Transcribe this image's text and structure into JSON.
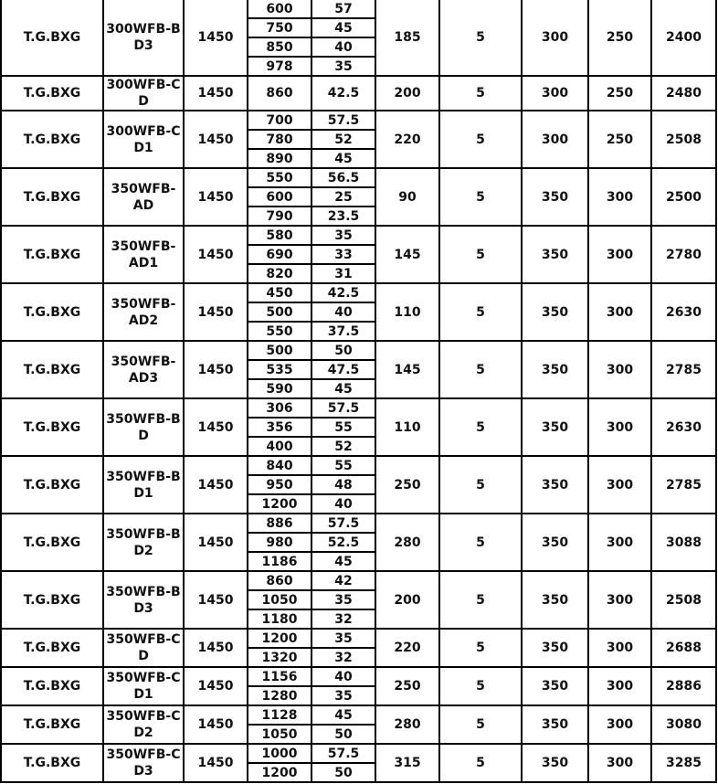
{
  "table": {
    "rows": [
      {
        "series": "T.G.BXG",
        "model_lines": [
          "300WFB-B",
          "D3"
        ],
        "speed": "1450",
        "flow": [
          "600",
          "750",
          "850",
          "978"
        ],
        "head": [
          "57",
          "45",
          "40",
          "35"
        ],
        "c6": "185",
        "c7": "5",
        "c8": "300",
        "c9": "250",
        "c10": "2400"
      },
      {
        "series": "T.G.BXG",
        "model_lines": [
          "300WFB-C",
          "D"
        ],
        "speed": "1450",
        "flow": [
          "860"
        ],
        "head": [
          "42.5"
        ],
        "c6": "200",
        "c7": "5",
        "c8": "300",
        "c9": "250",
        "c10": "2480",
        "span": 2
      },
      {
        "series": "T.G.BXG",
        "model_lines": [
          "300WFB-C",
          "D1"
        ],
        "speed": "1450",
        "flow": [
          "700",
          "780",
          "890"
        ],
        "head": [
          "57.5",
          "52",
          "45"
        ],
        "c6": "220",
        "c7": "5",
        "c8": "300",
        "c9": "250",
        "c10": "2508"
      },
      {
        "series": "T.G.BXG",
        "model_lines": [
          "350WFB-",
          "AD"
        ],
        "speed": "1450",
        "flow": [
          "550",
          "600",
          "790"
        ],
        "head": [
          "56.5",
          "25",
          "23.5"
        ],
        "c6": "90",
        "c7": "5",
        "c8": "350",
        "c9": "300",
        "c10": "2500"
      },
      {
        "series": "T.G.BXG",
        "model_lines": [
          "350WFB-",
          "AD1"
        ],
        "speed": "1450",
        "flow": [
          "580",
          "690",
          "820"
        ],
        "head": [
          "35",
          "33",
          "31"
        ],
        "c6": "145",
        "c7": "5",
        "c8": "350",
        "c9": "300",
        "c10": "2780"
      },
      {
        "series": "T.G.BXG",
        "model_lines": [
          "350WFB-",
          "AD2"
        ],
        "speed": "1450",
        "flow": [
          "450",
          "500",
          "550"
        ],
        "head": [
          "42.5",
          "40",
          "37.5"
        ],
        "c6": "110",
        "c7": "5",
        "c8": "350",
        "c9": "300",
        "c10": "2630"
      },
      {
        "series": "T.G.BXG",
        "model_lines": [
          "350WFB-",
          "AD3"
        ],
        "speed": "1450",
        "flow": [
          "500",
          "535",
          "590"
        ],
        "head": [
          "50",
          "47.5",
          "45"
        ],
        "c6": "145",
        "c7": "5",
        "c8": "350",
        "c9": "300",
        "c10": "2785"
      },
      {
        "series": "T.G.BXG",
        "model_lines": [
          "350WFB-B",
          "D"
        ],
        "speed": "1450",
        "flow": [
          "306",
          "356",
          "400"
        ],
        "head": [
          "57.5",
          "55",
          "52"
        ],
        "c6": "110",
        "c7": "5",
        "c8": "350",
        "c9": "300",
        "c10": "2630"
      },
      {
        "series": "T.G.BXG",
        "model_lines": [
          "350WFB-B",
          "D1"
        ],
        "speed": "1450",
        "flow": [
          "840",
          "950",
          "1200"
        ],
        "head": [
          "55",
          "48",
          "40"
        ],
        "c6": "250",
        "c7": "5",
        "c8": "350",
        "c9": "300",
        "c10": "2785"
      },
      {
        "series": "T.G.BXG",
        "model_lines": [
          "350WFB-B",
          "D2"
        ],
        "speed": "1450",
        "flow": [
          "886",
          "980",
          "1186"
        ],
        "head": [
          "57.5",
          "52.5",
          "45"
        ],
        "c6": "280",
        "c7": "5",
        "c8": "350",
        "c9": "300",
        "c10": "3088"
      },
      {
        "series": "T.G.BXG",
        "model_lines": [
          "350WFB-B",
          "D3"
        ],
        "speed": "1450",
        "flow": [
          "860",
          "1050",
          "1180"
        ],
        "head": [
          "42",
          "35",
          "32"
        ],
        "c6": "200",
        "c7": "5",
        "c8": "350",
        "c9": "300",
        "c10": "2508"
      },
      {
        "series": "T.G.BXG",
        "model_lines": [
          "350WFB-C",
          "D"
        ],
        "speed": "1450",
        "flow": [
          "1200",
          "1320"
        ],
        "head": [
          "35",
          "32"
        ],
        "c6": "220",
        "c7": "5",
        "c8": "350",
        "c9": "300",
        "c10": "2688"
      },
      {
        "series": "T.G.BXG",
        "model_lines": [
          "350WFB-C",
          "D1"
        ],
        "speed": "1450",
        "flow": [
          "1156",
          "1280"
        ],
        "head": [
          "40",
          "35"
        ],
        "c6": "250",
        "c7": "5",
        "c8": "350",
        "c9": "300",
        "c10": "2886"
      },
      {
        "series": "T.G.BXG",
        "model_lines": [
          "350WFB-C",
          "D2"
        ],
        "speed": "1450",
        "flow": [
          "1128",
          "1050"
        ],
        "head": [
          "45",
          "50"
        ],
        "c6": "280",
        "c7": "5",
        "c8": "350",
        "c9": "300",
        "c10": "3080"
      },
      {
        "series": "T.G.BXG",
        "model_lines": [
          "350WFB-C",
          "D3"
        ],
        "speed": "1450",
        "flow": [
          "1000",
          "1200"
        ],
        "head": [
          "57.5",
          "50"
        ],
        "c6": "315",
        "c7": "5",
        "c8": "350",
        "c9": "300",
        "c10": "3285"
      }
    ]
  }
}
